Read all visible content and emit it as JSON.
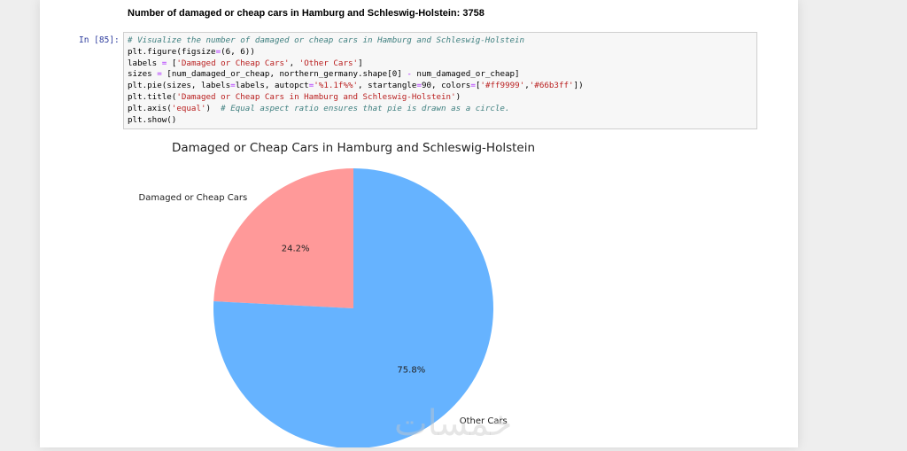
{
  "output": {
    "text": "Number of damaged or cheap cars in Hamburg and Schleswig-Holstein: 3758"
  },
  "cell": {
    "prompt": "In [85]:",
    "code_lines": [
      [
        {
          "t": "# Visualize the number of damaged or cheap cars in Hamburg and Schleswig-Holstein",
          "c": "cm"
        }
      ],
      [
        {
          "t": "plt.figure(figsize",
          "c": ""
        },
        {
          "t": "=",
          "c": "op"
        },
        {
          "t": "(6, 6))",
          "c": ""
        }
      ],
      [
        {
          "t": "labels ",
          "c": ""
        },
        {
          "t": "=",
          "c": "op"
        },
        {
          "t": " [",
          "c": ""
        },
        {
          "t": "'Damaged or Cheap Cars'",
          "c": "st"
        },
        {
          "t": ", ",
          "c": ""
        },
        {
          "t": "'Other Cars'",
          "c": "st"
        },
        {
          "t": "]",
          "c": ""
        }
      ],
      [
        {
          "t": "sizes ",
          "c": ""
        },
        {
          "t": "=",
          "c": "op"
        },
        {
          "t": " [num_damaged_or_cheap, northern_germany.shape[0] ",
          "c": ""
        },
        {
          "t": "-",
          "c": "op"
        },
        {
          "t": " num_damaged_or_cheap]",
          "c": ""
        }
      ],
      [
        {
          "t": "plt.pie(sizes, labels",
          "c": ""
        },
        {
          "t": "=",
          "c": "op"
        },
        {
          "t": "labels, autopct",
          "c": ""
        },
        {
          "t": "=",
          "c": "op"
        },
        {
          "t": "'%1.1f%%'",
          "c": "st"
        },
        {
          "t": ", startangle",
          "c": ""
        },
        {
          "t": "=",
          "c": "op"
        },
        {
          "t": "90, colors",
          "c": ""
        },
        {
          "t": "=",
          "c": "op"
        },
        {
          "t": "[",
          "c": ""
        },
        {
          "t": "'#ff9999'",
          "c": "st"
        },
        {
          "t": ",",
          "c": ""
        },
        {
          "t": "'#66b3ff'",
          "c": "st"
        },
        {
          "t": "])",
          "c": ""
        }
      ],
      [
        {
          "t": "plt.title(",
          "c": ""
        },
        {
          "t": "'Damaged or Cheap Cars in Hamburg and Schleswig-Holstein'",
          "c": "st"
        },
        {
          "t": ")",
          "c": ""
        }
      ],
      [
        {
          "t": "plt.axis(",
          "c": ""
        },
        {
          "t": "'equal'",
          "c": "st"
        },
        {
          "t": ")  ",
          "c": ""
        },
        {
          "t": "# Equal aspect ratio ensures that pie is drawn as a circle.",
          "c": "cm"
        }
      ],
      [
        {
          "t": "plt.show()",
          "c": ""
        }
      ]
    ]
  },
  "chart_data": {
    "type": "pie",
    "title": "Damaged or Cheap Cars in Hamburg and Schleswig-Holstein",
    "slices": [
      {
        "label": "Damaged or Cheap Cars",
        "value": 24.2,
        "pct_label": "24.2%",
        "color": "#ff9999"
      },
      {
        "label": "Other Cars",
        "value": 75.8,
        "pct_label": "75.8%",
        "color": "#66b3ff"
      }
    ],
    "startangle": 90
  },
  "watermark": "خمسات"
}
